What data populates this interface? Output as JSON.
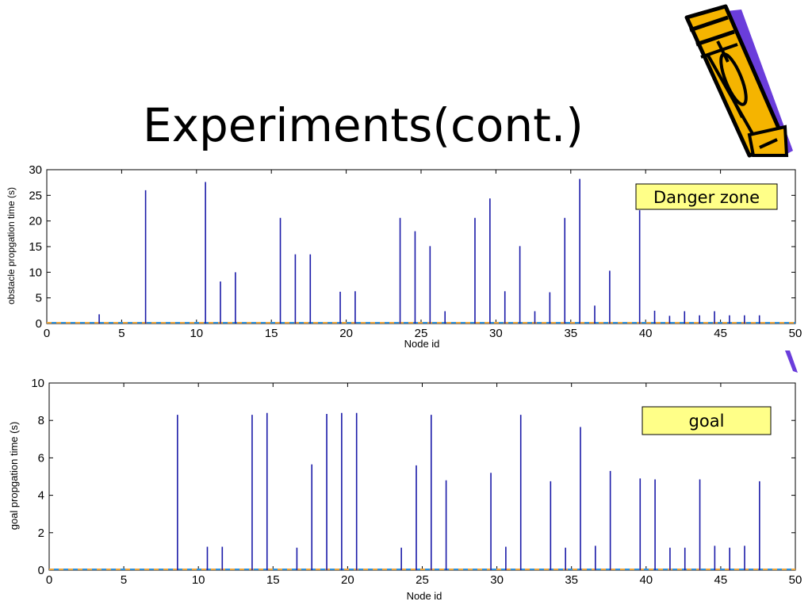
{
  "slide": {
    "title": "Experiments(cont.)"
  },
  "chart_data": [
    {
      "type": "bar",
      "xlabel": "Node id",
      "ylabel": "obstacle propgation time (s)",
      "xlim": [
        0,
        50
      ],
      "ylim": [
        0,
        30
      ],
      "xticks": [
        0,
        5,
        10,
        15,
        20,
        25,
        30,
        35,
        40,
        45,
        50
      ],
      "yticks": [
        0,
        5,
        10,
        15,
        20,
        25,
        30
      ],
      "annotation": "Danger zone",
      "points": [
        {
          "x": 3.5,
          "y": 1.8
        },
        {
          "x": 6.6,
          "y": 26
        },
        {
          "x": 10.6,
          "y": 27.6
        },
        {
          "x": 11.6,
          "y": 8.2
        },
        {
          "x": 12.6,
          "y": 10
        },
        {
          "x": 15.6,
          "y": 20.6
        },
        {
          "x": 16.6,
          "y": 13.5
        },
        {
          "x": 17.6,
          "y": 13.5
        },
        {
          "x": 19.6,
          "y": 6.2
        },
        {
          "x": 20.6,
          "y": 6.3
        },
        {
          "x": 23.6,
          "y": 20.6
        },
        {
          "x": 24.6,
          "y": 18
        },
        {
          "x": 25.6,
          "y": 15.1
        },
        {
          "x": 26.6,
          "y": 2.4
        },
        {
          "x": 28.6,
          "y": 20.6
        },
        {
          "x": 29.6,
          "y": 24.4
        },
        {
          "x": 30.6,
          "y": 6.3
        },
        {
          "x": 31.6,
          "y": 15.1
        },
        {
          "x": 32.6,
          "y": 2.4
        },
        {
          "x": 33.6,
          "y": 6.1
        },
        {
          "x": 34.6,
          "y": 20.6
        },
        {
          "x": 35.6,
          "y": 28.2
        },
        {
          "x": 36.6,
          "y": 3.5
        },
        {
          "x": 37.6,
          "y": 10.3
        },
        {
          "x": 39.6,
          "y": 22.1
        },
        {
          "x": 40.6,
          "y": 2.5
        },
        {
          "x": 41.6,
          "y": 1.5
        },
        {
          "x": 42.6,
          "y": 2.4
        },
        {
          "x": 43.6,
          "y": 1.6
        },
        {
          "x": 44.6,
          "y": 2.4
        },
        {
          "x": 45.6,
          "y": 1.6
        },
        {
          "x": 46.6,
          "y": 1.6
        },
        {
          "x": 47.6,
          "y": 1.6
        }
      ]
    },
    {
      "type": "bar",
      "xlabel": "Node id",
      "ylabel": "goal propgation time (s)",
      "xlim": [
        0,
        50
      ],
      "ylim": [
        0,
        10
      ],
      "xticks": [
        0,
        5,
        10,
        15,
        20,
        25,
        30,
        35,
        40,
        45,
        50
      ],
      "yticks": [
        0,
        2,
        4,
        6,
        8,
        10
      ],
      "annotation": "goal",
      "points": [
        {
          "x": 8.6,
          "y": 8.3
        },
        {
          "x": 10.6,
          "y": 1.25
        },
        {
          "x": 11.6,
          "y": 1.25
        },
        {
          "x": 13.6,
          "y": 8.3
        },
        {
          "x": 14.6,
          "y": 8.4
        },
        {
          "x": 16.6,
          "y": 1.2
        },
        {
          "x": 17.6,
          "y": 5.65
        },
        {
          "x": 18.6,
          "y": 8.35
        },
        {
          "x": 19.6,
          "y": 8.4
        },
        {
          "x": 20.6,
          "y": 8.4
        },
        {
          "x": 23.6,
          "y": 1.2
        },
        {
          "x": 24.6,
          "y": 5.6
        },
        {
          "x": 25.6,
          "y": 8.3
        },
        {
          "x": 26.6,
          "y": 4.8
        },
        {
          "x": 29.6,
          "y": 5.2
        },
        {
          "x": 30.6,
          "y": 1.25
        },
        {
          "x": 31.6,
          "y": 8.3
        },
        {
          "x": 33.6,
          "y": 4.75
        },
        {
          "x": 34.6,
          "y": 1.2
        },
        {
          "x": 35.6,
          "y": 7.65
        },
        {
          "x": 36.6,
          "y": 1.3
        },
        {
          "x": 37.6,
          "y": 5.3
        },
        {
          "x": 39.6,
          "y": 4.9
        },
        {
          "x": 40.6,
          "y": 4.85
        },
        {
          "x": 41.6,
          "y": 1.2
        },
        {
          "x": 42.6,
          "y": 1.2
        },
        {
          "x": 43.6,
          "y": 4.85
        },
        {
          "x": 44.6,
          "y": 1.3
        },
        {
          "x": 45.6,
          "y": 1.2
        },
        {
          "x": 46.6,
          "y": 1.3
        },
        {
          "x": 47.6,
          "y": 4.75
        }
      ]
    }
  ],
  "colors": {
    "bar": "#1a1aa8",
    "baseline_dash_a": "#e8a33c",
    "baseline_dash_b": "#2f8fd8",
    "annotation_fill": "#ffff88",
    "pencil_body": "#f5b400",
    "pencil_shadow": "#6a3ddb"
  },
  "icons": {
    "decoration": "pencil-icon"
  }
}
